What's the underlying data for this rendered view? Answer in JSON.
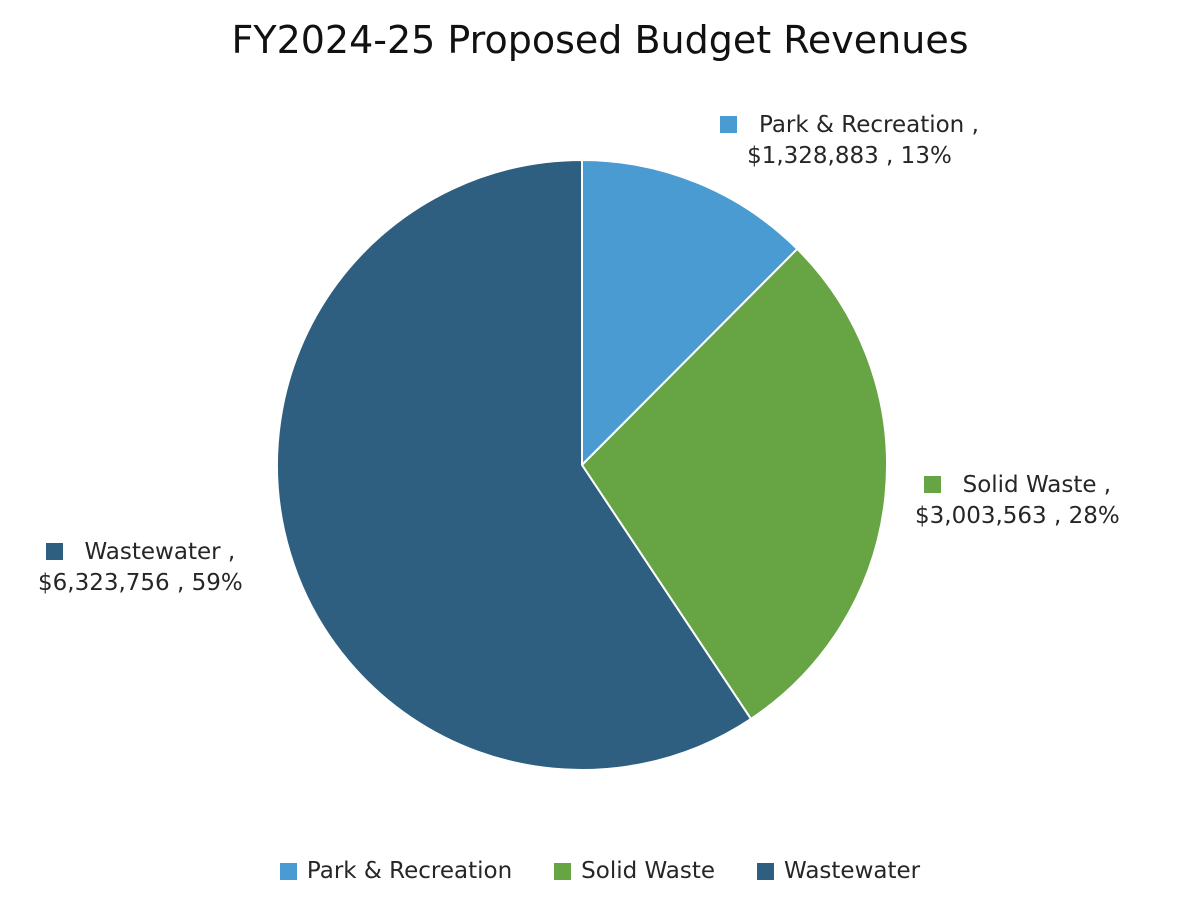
{
  "chart_data": {
    "type": "pie",
    "title": "FY2024-25 Proposed Budget Revenues",
    "categories": [
      "Park & Recreation",
      "Solid Waste",
      "Wastewater"
    ],
    "values": [
      1328883,
      3003563,
      6323756
    ],
    "value_labels": [
      "$1,328,883",
      "$3,003,563",
      "$6,323,756"
    ],
    "percent_labels": [
      "13%",
      "28%",
      "59%"
    ],
    "colors": [
      "#4A9BD1",
      "#67A443",
      "#2E5F80"
    ],
    "start_angle_deg": 0,
    "direction": "clockwise",
    "legend_position": "bottom",
    "data_labels": [
      {
        "line1": "Park & Recreation ,",
        "line2": "$1,328,883 , 13%"
      },
      {
        "line1": "Solid Waste ,",
        "line2": "$3,003,563 , 28%"
      },
      {
        "line1": "Wastewater ,",
        "line2": "$6,323,756 , 59%"
      }
    ]
  }
}
